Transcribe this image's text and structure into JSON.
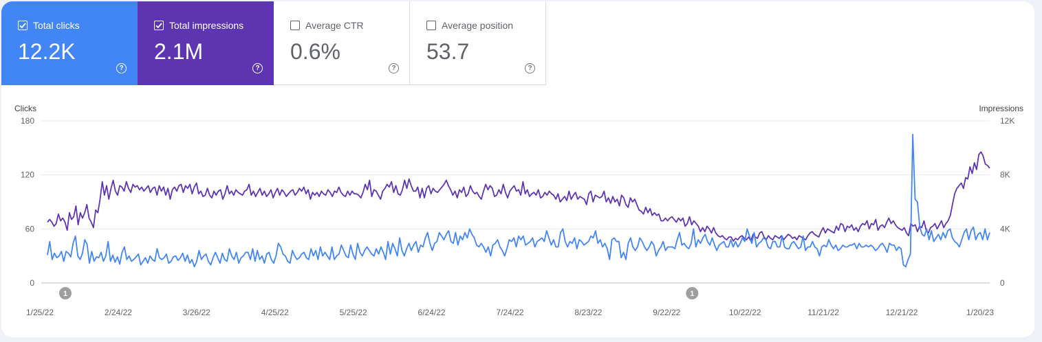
{
  "metrics": [
    {
      "label": "Total clicks",
      "value": "12.2K",
      "checked": true,
      "color": "#4285f4"
    },
    {
      "label": "Total impressions",
      "value": "2.1M",
      "checked": true,
      "color": "#5e35b1"
    },
    {
      "label": "Average CTR",
      "value": "0.6%",
      "checked": false
    },
    {
      "label": "Average position",
      "value": "53.7",
      "checked": false
    }
  ],
  "chart_data": {
    "type": "line",
    "left_axis": {
      "title": "Clicks",
      "ticks": [
        "180",
        "120",
        "60",
        "0"
      ],
      "ylim": [
        0,
        180
      ]
    },
    "right_axis": {
      "title": "Impressions",
      "ticks": [
        "12K",
        "8K",
        "4K",
        "0"
      ],
      "ylim": [
        0,
        12000
      ]
    },
    "x_ticks": [
      "1/25/22",
      "2/24/22",
      "3/26/22",
      "4/25/22",
      "5/25/22",
      "6/24/22",
      "7/24/22",
      "8/23/22",
      "9/22/22",
      "10/22/22",
      "11/21/22",
      "12/21/22",
      "1/20/23"
    ],
    "annotations": [
      {
        "label": "1",
        "date": "1/25/22"
      },
      {
        "label": "1",
        "date": "9/22/22"
      }
    ],
    "grid": true,
    "series": [
      {
        "name": "Clicks",
        "color": "#4285f4",
        "axis": "left",
        "values": [
          31,
          46,
          26,
          33,
          28,
          30,
          35,
          24,
          35,
          33,
          29,
          44,
          52,
          30,
          26,
          33,
          48,
          43,
          22,
          35,
          24,
          29,
          28,
          34,
          24,
          30,
          46,
          24,
          31,
          23,
          29,
          21,
          34,
          40,
          26,
          30,
          24,
          26,
          29,
          32,
          20,
          24,
          28,
          22,
          30,
          26,
          24,
          38,
          28,
          26,
          28,
          32,
          22,
          24,
          29,
          30,
          25,
          28,
          33,
          24,
          31,
          22,
          26,
          18,
          24,
          36,
          26,
          30,
          32,
          24,
          20,
          28,
          34,
          28,
          22,
          33,
          26,
          24,
          38,
          30,
          26,
          34,
          22,
          28,
          30,
          34,
          34,
          26,
          38,
          24,
          36,
          26,
          30,
          22,
          32,
          34,
          26,
          22,
          30,
          44,
          40,
          32,
          30,
          24,
          22,
          36,
          30,
          26,
          28,
          32,
          34,
          28,
          26,
          38,
          30,
          36,
          26,
          40,
          30,
          34,
          30,
          26,
          40,
          26,
          30,
          32,
          42,
          36,
          30,
          28,
          42,
          32,
          26,
          44,
          34,
          30,
          36,
          40,
          36,
          32,
          30,
          38,
          32,
          40,
          34,
          26,
          46,
          32,
          44,
          38,
          30,
          50,
          36,
          30,
          38,
          44,
          36,
          42,
          46,
          34,
          42,
          40,
          50,
          56,
          44,
          36,
          44,
          46,
          56,
          52,
          48,
          54,
          58,
          46,
          44,
          56,
          42,
          52,
          48,
          56,
          50,
          60,
          54,
          50,
          42,
          40,
          44,
          40,
          34,
          40,
          30,
          42,
          44,
          48,
          40,
          36,
          30,
          38,
          48,
          46,
          50,
          40,
          52,
          48,
          52,
          42,
          44,
          46,
          50,
          40,
          46,
          48,
          50,
          46,
          58,
          50,
          42,
          48,
          40,
          40,
          56,
          60,
          46,
          40,
          46,
          44,
          50,
          38,
          48,
          46,
          42,
          44,
          46,
          52,
          50,
          58,
          44,
          48,
          40,
          44,
          38,
          26,
          48,
          50,
          46,
          46,
          28,
          34,
          26,
          44,
          50,
          40,
          36,
          40,
          50,
          46,
          40,
          36,
          40,
          46,
          42,
          30,
          36,
          40,
          46,
          36,
          40,
          40,
          40,
          38,
          48,
          56,
          42,
          44,
          40,
          38,
          44,
          60,
          40,
          48,
          44,
          50,
          54,
          46,
          42,
          50,
          42,
          36,
          42,
          44,
          46,
          40,
          40,
          48,
          40,
          46,
          40,
          44,
          50,
          46,
          60,
          52,
          44,
          56,
          40,
          44,
          46,
          50,
          48,
          40,
          38,
          46,
          46,
          40,
          40,
          52,
          40,
          38,
          38,
          44,
          46,
          42,
          38,
          40,
          52,
          36,
          40,
          40,
          46,
          40,
          38,
          30,
          40,
          42,
          40,
          48,
          42,
          38,
          42,
          36,
          38,
          42,
          40,
          40,
          42,
          42,
          44,
          38,
          44,
          40,
          40,
          42,
          40,
          42,
          40,
          36,
          38,
          42,
          44,
          40,
          34,
          44,
          42,
          42,
          36,
          40,
          38,
          20,
          18,
          26,
          32,
          165,
          93,
          90,
          62,
          54,
          52,
          60,
          48,
          58,
          46,
          50,
          54,
          48,
          56,
          50,
          58,
          60,
          50,
          46,
          44,
          40,
          48,
          56,
          60,
          48,
          58,
          62,
          48,
          54,
          56,
          48,
          60,
          48,
          56
        ]
      },
      {
        "name": "Impressions",
        "color": "#5e35b1",
        "axis": "right",
        "values": [
          4500,
          4700,
          4500,
          4200,
          4400,
          5100,
          4600,
          4800,
          4500,
          3900,
          5200,
          4700,
          4900,
          5700,
          4300,
          5200,
          4800,
          5200,
          5800,
          4800,
          4500,
          4100,
          5400,
          5200,
          6200,
          7500,
          6500,
          7200,
          6200,
          7000,
          7600,
          6800,
          6500,
          7200,
          7100,
          6800,
          7500,
          7000,
          6700,
          7300,
          7100,
          7200,
          6900,
          7100,
          6800,
          7000,
          7200,
          6700,
          7000,
          7100,
          6500,
          7200,
          6800,
          7100,
          6500,
          7000,
          6200,
          6900,
          7100,
          6800,
          7200,
          7300,
          6700,
          7200,
          7000,
          7300,
          6600,
          7100,
          7400,
          6600,
          6800,
          6400,
          6500,
          7000,
          6500,
          6300,
          6800,
          6500,
          6800,
          6900,
          6200,
          6600,
          7200,
          6600,
          6800,
          6500,
          6900,
          6700,
          6600,
          6500,
          6800,
          6900,
          7300,
          6500,
          6800,
          6400,
          6700,
          7000,
          6500,
          6800,
          6400,
          6600,
          6900,
          6300,
          6700,
          7000,
          6500,
          6900,
          6700,
          6400,
          6600,
          6800,
          6900,
          6500,
          6700,
          7000,
          6800,
          7100,
          6600,
          6900,
          6200,
          6700,
          6500,
          6700,
          6400,
          6800,
          6600,
          6500,
          6900,
          6700,
          6400,
          6800,
          6700,
          7100,
          6700,
          6500,
          6400,
          6800,
          6500,
          6800,
          6600,
          6600,
          6500,
          6300,
          6700,
          7300,
          6900,
          7600,
          6400,
          6900,
          6800,
          6500,
          6200,
          6800,
          7000,
          7300,
          7100,
          7500,
          6700,
          7200,
          6600,
          6500,
          6900,
          7600,
          7000,
          7700,
          7200,
          6800,
          6800,
          7100,
          6300,
          7000,
          6300,
          7000,
          7200,
          6600,
          7000,
          6800,
          6700,
          6900,
          7100,
          7300,
          7600,
          7200,
          6900,
          6500,
          6800,
          6300,
          6900,
          6700,
          7100,
          6400,
          6600,
          7200,
          6800,
          6600,
          6700,
          6400,
          6200,
          6800,
          7300,
          6900,
          7200,
          7000,
          6400,
          6500,
          6900,
          6600,
          7300,
          6700,
          6300,
          6800,
          7000,
          7200,
          6800,
          6900,
          6500,
          7500,
          6600,
          6900,
          6400,
          6600,
          6700,
          6500,
          6900,
          6300,
          6400,
          6700,
          6500,
          6800,
          6600,
          6500,
          6200,
          6600,
          6000,
          6200,
          6400,
          6100,
          6800,
          6200,
          6500,
          6700,
          6200,
          6400,
          6300,
          6200,
          5800,
          6600,
          6800,
          6000,
          6500,
          6400,
          6300,
          6400,
          6800,
          6000,
          6300,
          5900,
          6400,
          6000,
          6200,
          5700,
          6500,
          6300,
          5800,
          5600,
          6300,
          6000,
          6200,
          5800,
          5400,
          5300,
          5100,
          5600,
          5200,
          5500,
          5000,
          5200,
          5000,
          5100,
          4600,
          4600,
          4800,
          4600,
          4800,
          4900,
          4700,
          4500,
          4800,
          4600,
          4800,
          4200,
          4400,
          4900,
          4300,
          4600,
          4400,
          4200,
          3800,
          4100,
          3800,
          4200,
          4000,
          3700,
          4100,
          3700,
          3500,
          3400,
          3500,
          3300,
          3200,
          3400,
          3400,
          3100,
          3300,
          3200,
          3400,
          3500,
          3300,
          3200,
          3400,
          3100,
          3600,
          3400,
          3300,
          3700,
          3800,
          3400,
          3200,
          3500,
          3300,
          3200,
          3500,
          3400,
          3300,
          3500,
          3200,
          3400,
          3600,
          3500,
          3300,
          3400,
          3200,
          3500,
          3400,
          3300,
          3200,
          3500,
          3700,
          3800,
          3600,
          3500,
          3400,
          3800,
          4100,
          3700,
          4000,
          3900,
          3800,
          3700,
          4200,
          3900,
          4400,
          4300,
          3800,
          4200,
          4100,
          4300,
          3900,
          4100,
          3800,
          4200,
          4400,
          4300,
          4600,
          4000,
          4400,
          4300,
          4700,
          3900,
          4200,
          4300,
          4100,
          4500,
          4800,
          4400,
          4600,
          4300,
          4100,
          4000,
          3900,
          4100,
          3700,
          3500,
          4400,
          4200,
          4300,
          3800,
          4200,
          4100,
          4600,
          3900,
          3700,
          4100,
          4200,
          4400,
          4000,
          4300,
          4600,
          4100,
          4400,
          4600,
          5000,
          5800,
          6600,
          7000,
          7200,
          7400,
          7000,
          7800,
          7700,
          8600,
          8100,
          8900,
          8400,
          9500,
          9700,
          9400,
          8800,
          8700,
          8500
        ]
      }
    ]
  }
}
